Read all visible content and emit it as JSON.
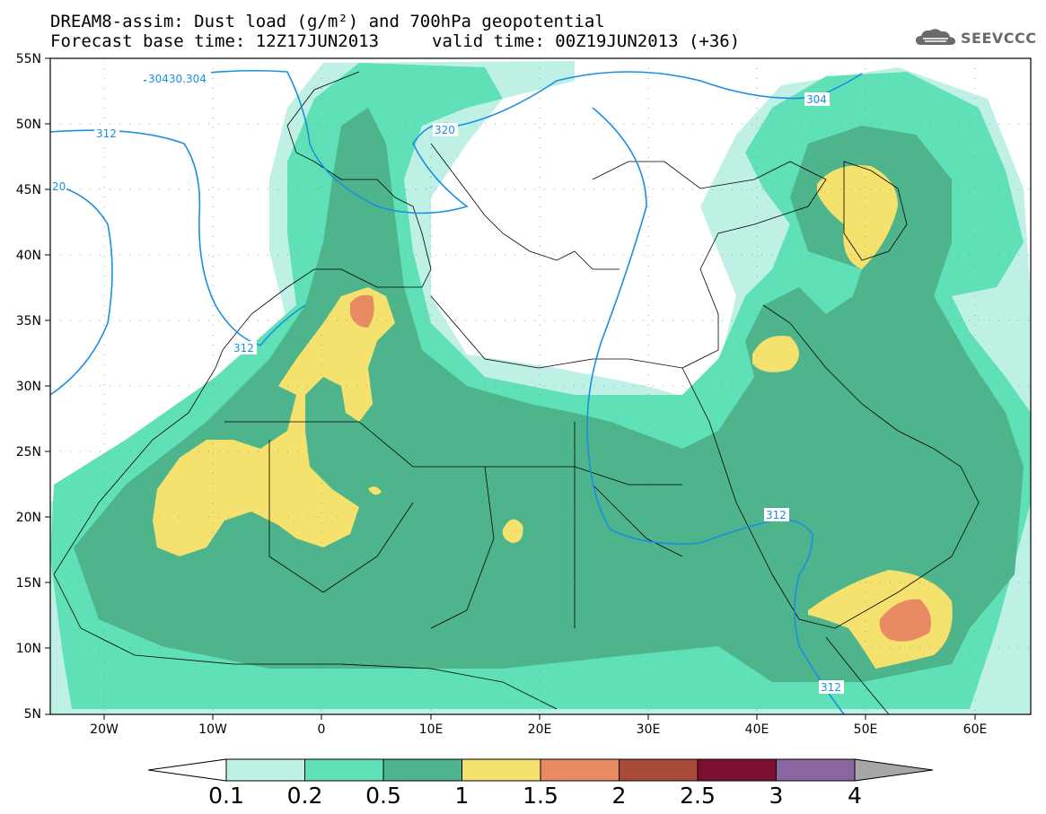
{
  "header": {
    "title_line1": "DREAM8-assim: Dust load (g/m²) and 700hPa geopotential",
    "title_line2": "Forecast base time: 12Z17JUN2013",
    "title_line2_valid": "valid time: 00Z19JUN2013 (+36)"
  },
  "logo": {
    "text": "SEEVCCC",
    "icon": "cloud-logo-icon"
  },
  "axes": {
    "lat_labels": [
      "55N",
      "50N",
      "45N",
      "40N",
      "35N",
      "30N",
      "25N",
      "20N",
      "15N",
      "10N",
      "5N"
    ],
    "lon_labels": [
      "20W",
      "10W",
      "0",
      "10E",
      "20E",
      "30E",
      "40E",
      "50E",
      "60E"
    ],
    "lat_range": [
      5,
      55
    ],
    "lon_range": [
      -25,
      65
    ]
  },
  "colorbar": {
    "labels": [
      "0.1",
      "0.2",
      "0.5",
      "1",
      "1.5",
      "2",
      "2.5",
      "3",
      "4"
    ],
    "colors": [
      "#bff0e6",
      "#5fe0b6",
      "#4db48c",
      "#f5e16e",
      "#e88a63",
      "#a84a38",
      "#7a0f2e",
      "#8a66a0",
      "#a7a7a7"
    ],
    "below_color": "#ffffff"
  },
  "contours": {
    "color": "#1a8fe0",
    "labels": [
      "30430.304",
      "312",
      "320",
      "304",
      "20",
      "312",
      "312",
      "312"
    ]
  },
  "colors": {
    "level_01": "#bff0e6",
    "level_02": "#5fe0b6",
    "level_05": "#4db48c",
    "level_1": "#f5e16e",
    "level_15": "#e88a63"
  }
}
